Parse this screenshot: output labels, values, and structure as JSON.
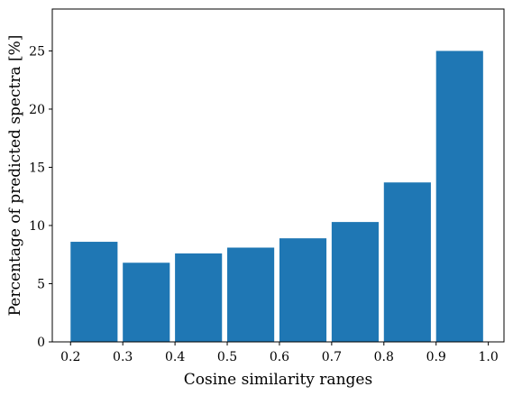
{
  "chart_data": {
    "type": "bar",
    "title": "",
    "xlabel": "Cosine similarity ranges",
    "ylabel": "Percentage of predicted spectra [%]",
    "xlim": [
      0.165,
      1.03
    ],
    "ylim": [
      0,
      28.6
    ],
    "bar_width": 0.09,
    "grid": false,
    "legend": "none",
    "bar_color": "#1f77b4",
    "x_ticks": [
      0.2,
      0.3,
      0.4,
      0.5,
      0.6,
      0.7,
      0.8,
      0.9,
      1.0
    ],
    "x_tick_labels": [
      "0.2",
      "0.3",
      "0.4",
      "0.5",
      "0.6",
      "0.7",
      "0.8",
      "0.9",
      "1.0"
    ],
    "y_ticks": [
      0,
      5,
      10,
      15,
      20,
      25
    ],
    "y_tick_labels": [
      "0",
      "5",
      "10",
      "15",
      "20",
      "25"
    ],
    "categories": [
      "0.2-0.3",
      "0.3-0.4",
      "0.4-0.5",
      "0.5-0.6",
      "0.6-0.7",
      "0.7-0.8",
      "0.8-0.9",
      "0.9-1.0"
    ],
    "bar_starts": [
      0.2,
      0.3,
      0.4,
      0.5,
      0.6,
      0.7,
      0.8,
      0.9
    ],
    "values": [
      8.6,
      6.8,
      7.6,
      8.1,
      8.9,
      10.3,
      13.7,
      25.0
    ]
  }
}
